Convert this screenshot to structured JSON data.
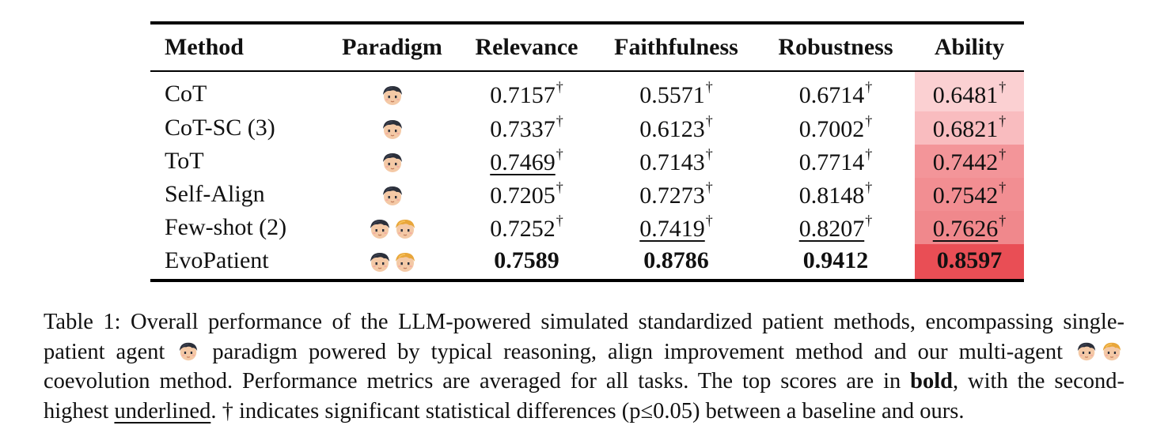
{
  "table": {
    "headers": {
      "method": "Method",
      "paradigm": "Paradigm",
      "relevance": "Relevance",
      "faithfulness": "Faithfulness",
      "robustness": "Robustness",
      "ability": "Ability"
    },
    "rows": [
      {
        "method": "CoT",
        "paradigm": "single-agent",
        "relevance": "0.7157",
        "faithfulness": "0.5571",
        "robustness": "0.6714",
        "ability": "0.6481",
        "ability_color": "#fbd0d2"
      },
      {
        "method": "CoT-SC (3)",
        "paradigm": "single-agent",
        "relevance": "0.7337",
        "faithfulness": "0.6123",
        "robustness": "0.7002",
        "ability": "0.6821",
        "ability_color": "#f9bcbf"
      },
      {
        "method": "ToT",
        "paradigm": "single-agent",
        "relevance": "0.7469",
        "faithfulness": "0.7143",
        "robustness": "0.7714",
        "ability": "0.7442",
        "ability_color": "#f39599"
      },
      {
        "method": "Self-Align",
        "paradigm": "single-agent",
        "relevance": "0.7205",
        "faithfulness": "0.7273",
        "robustness": "0.8148",
        "ability": "0.7542",
        "ability_color": "#f28e92"
      },
      {
        "method": "Few-shot (2)",
        "paradigm": "multi-agent",
        "relevance": "0.7252",
        "faithfulness": "0.7419",
        "robustness": "0.8207",
        "ability": "0.7626",
        "ability_color": "#f0888c"
      },
      {
        "method": "EvoPatient",
        "paradigm": "multi-agent",
        "relevance": "0.7589",
        "faithfulness": "0.8786",
        "robustness": "0.9412",
        "ability": "0.8597",
        "ability_color": "#e94e55"
      }
    ],
    "dagger": "†"
  },
  "caption": {
    "l1": "Table 1: Overall performance of the LLM-powered simulated standardized patient methods, encompassing single-",
    "l2a": "patient agent",
    "l2b": "paradigm powered by typical reasoning, align improvement method and our multi-agent",
    "l3a": "coevolution method. Performance metrics are averaged for all tasks. The top scores are in",
    "l3b": "bold",
    "l3c": ", with the second-",
    "l4a": "highest",
    "l4b": "underlined",
    "l4c": ". † indicates significant statistical differences (p≤0.05) between a baseline and ours."
  },
  "icons": {
    "single_agent": "dark-haired-patient-avatar-icon",
    "second_agent": "blond-doctor-avatar-icon"
  }
}
